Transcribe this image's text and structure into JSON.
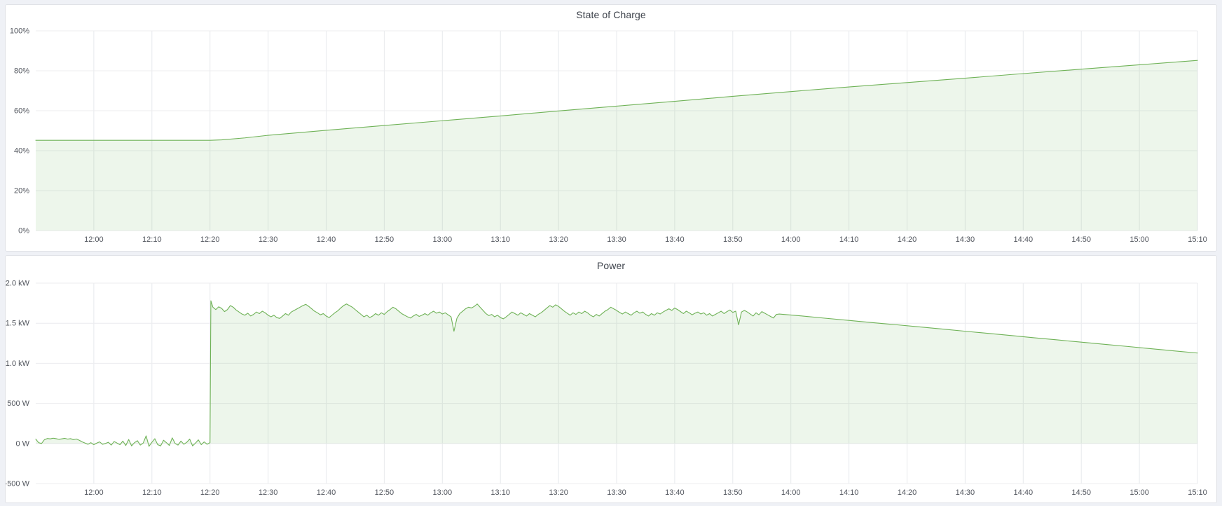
{
  "page": {
    "background_color": "#eff1f6",
    "panel_background": "#ffffff",
    "accent_green": "#6fb257"
  },
  "chart_data": [
    {
      "type": "area",
      "title": "State of Charge",
      "unit": "percent",
      "grid": true,
      "legend": false,
      "x_domain_minutes": [
        710,
        910
      ],
      "x_domain_labels": [
        "11:50",
        "15:10"
      ],
      "y_domain": [
        0,
        100
      ],
      "fill_baseline": 0,
      "y_ticks": [
        {
          "v": 0,
          "label": "0%"
        },
        {
          "v": 20,
          "label": "20%"
        },
        {
          "v": 40,
          "label": "40%"
        },
        {
          "v": 60,
          "label": "60%"
        },
        {
          "v": 80,
          "label": "80%"
        },
        {
          "v": 100,
          "label": "100%"
        }
      ],
      "x_ticks": [
        {
          "t": 720,
          "label": "12:00"
        },
        {
          "t": 730,
          "label": "12:10"
        },
        {
          "t": 740,
          "label": "12:20"
        },
        {
          "t": 750,
          "label": "12:30"
        },
        {
          "t": 760,
          "label": "12:40"
        },
        {
          "t": 770,
          "label": "12:50"
        },
        {
          "t": 780,
          "label": "13:00"
        },
        {
          "t": 790,
          "label": "13:10"
        },
        {
          "t": 800,
          "label": "13:20"
        },
        {
          "t": 810,
          "label": "13:30"
        },
        {
          "t": 820,
          "label": "13:40"
        },
        {
          "t": 830,
          "label": "13:50"
        },
        {
          "t": 840,
          "label": "14:00"
        },
        {
          "t": 850,
          "label": "14:10"
        },
        {
          "t": 860,
          "label": "14:20"
        },
        {
          "t": 870,
          "label": "14:30"
        },
        {
          "t": 880,
          "label": "14:40"
        },
        {
          "t": 890,
          "label": "14:50"
        },
        {
          "t": 900,
          "label": "15:00"
        },
        {
          "t": 910,
          "label": "15:10"
        }
      ],
      "series": [
        {
          "name": "State of Charge",
          "color": "#6fb257",
          "fill_opacity": 0.12,
          "segments": [
            {
              "pts": [
                [
                  710,
                  45.2
                ],
                [
                  740,
                  45.2
                ],
                [
                  742,
                  45.4
                ],
                [
                  746,
                  46.4
                ],
                [
                  750,
                  47.7
                ],
                [
                  760,
                  50.2
                ],
                [
                  770,
                  52.6
                ],
                [
                  780,
                  55.0
                ],
                [
                  790,
                  57.4
                ],
                [
                  800,
                  59.9
                ],
                [
                  810,
                  62.3
                ],
                [
                  820,
                  64.7
                ],
                [
                  830,
                  67.2
                ],
                [
                  840,
                  69.6
                ],
                [
                  850,
                  71.9
                ],
                [
                  860,
                  74.1
                ],
                [
                  870,
                  76.3
                ],
                [
                  880,
                  78.6
                ],
                [
                  890,
                  80.8
                ],
                [
                  900,
                  83.0
                ],
                [
                  910,
                  85.2
                ]
              ]
            }
          ]
        }
      ]
    },
    {
      "type": "area",
      "title": "Power",
      "unit": "watt",
      "grid": true,
      "legend": false,
      "x_domain_minutes": [
        710,
        910
      ],
      "x_domain_labels": [
        "11:50",
        "15:10"
      ],
      "y_domain": [
        -500,
        2000
      ],
      "fill_baseline": 0,
      "y_ticks": [
        {
          "v": -500,
          "label": "-500 W"
        },
        {
          "v": 0,
          "label": "0 W"
        },
        {
          "v": 500,
          "label": "500 W"
        },
        {
          "v": 1000,
          "label": "1.0 kW"
        },
        {
          "v": 1500,
          "label": "1.5 kW"
        },
        {
          "v": 2000,
          "label": "2.0 kW"
        }
      ],
      "x_ticks": [
        {
          "t": 720,
          "label": "12:00"
        },
        {
          "t": 730,
          "label": "12:10"
        },
        {
          "t": 740,
          "label": "12:20"
        },
        {
          "t": 750,
          "label": "12:30"
        },
        {
          "t": 760,
          "label": "12:40"
        },
        {
          "t": 770,
          "label": "12:50"
        },
        {
          "t": 780,
          "label": "13:00"
        },
        {
          "t": 790,
          "label": "13:10"
        },
        {
          "t": 800,
          "label": "13:20"
        },
        {
          "t": 810,
          "label": "13:30"
        },
        {
          "t": 820,
          "label": "13:40"
        },
        {
          "t": 830,
          "label": "13:50"
        },
        {
          "t": 840,
          "label": "14:00"
        },
        {
          "t": 850,
          "label": "14:10"
        },
        {
          "t": 860,
          "label": "14:20"
        },
        {
          "t": 870,
          "label": "14:30"
        },
        {
          "t": 880,
          "label": "14:40"
        },
        {
          "t": 890,
          "label": "14:50"
        },
        {
          "t": 900,
          "label": "15:00"
        },
        {
          "t": 910,
          "label": "15:10"
        }
      ],
      "series": [
        {
          "name": "Power",
          "color": "#6fb257",
          "fill_opacity": 0.12,
          "segments": [
            {
              "t0": 710,
              "dt": 0.5,
              "v": [
                55,
                10,
                0,
                48,
                62,
                58,
                66,
                60,
                52,
                58,
                64,
                55,
                60,
                48,
                56,
                40,
                20,
                5,
                -10,
                10,
                -15,
                5,
                20,
                -10,
                0,
                15,
                -20,
                25,
                5,
                -15,
                30,
                -25,
                50,
                -30,
                10,
                35,
                -20,
                5,
                95,
                -35,
                15,
                60,
                -15,
                -30,
                40,
                10,
                -25,
                70,
                0,
                -20,
                30,
                -10,
                15,
                55,
                -30,
                5,
                45,
                -15,
                20,
                -10,
                10
              ]
            },
            {
              "pts": [
                [
                  740.15,
                  1780
                ]
              ]
            },
            {
              "t0": 740.5,
              "dt": 0.5,
              "v": [
                1700,
                1670,
                1705,
                1685,
                1645,
                1670,
                1720,
                1700,
                1665,
                1640,
                1615,
                1600,
                1625,
                1590,
                1610,
                1640,
                1620,
                1650,
                1630,
                1600,
                1580,
                1600,
                1570,
                1560,
                1590,
                1620,
                1600,
                1640,
                1660,
                1680,
                1700,
                1720,
                1735,
                1710,
                1680,
                1650,
                1630,
                1605,
                1620,
                1590,
                1570,
                1600,
                1630,
                1655,
                1690,
                1720,
                1740,
                1720,
                1700,
                1670,
                1640,
                1610,
                1580,
                1600,
                1570,
                1590,
                1620,
                1600,
                1630,
                1610,
                1645,
                1670,
                1700,
                1680,
                1650,
                1620,
                1600,
                1580,
                1565,
                1590,
                1610,
                1585,
                1600,
                1620,
                1600,
                1630,
                1650,
                1625,
                1640,
                1615,
                1630,
                1605,
                1580,
                1400,
                1560,
                1620,
                1650,
                1680,
                1700,
                1690,
                1710,
                1740,
                1700,
                1660,
                1620,
                1595,
                1610,
                1580,
                1600,
                1570,
                1555,
                1580,
                1610,
                1640,
                1620,
                1600,
                1630,
                1610,
                1590,
                1620,
                1600,
                1580,
                1610,
                1630,
                1660,
                1690,
                1720,
                1700,
                1730,
                1710,
                1680,
                1650,
                1625,
                1600,
                1630,
                1610,
                1640,
                1620,
                1650,
                1630,
                1600,
                1580,
                1610,
                1590,
                1620,
                1650,
                1670,
                1700,
                1680,
                1660,
                1635,
                1615,
                1640,
                1620,
                1600,
                1630,
                1650,
                1625,
                1640,
                1610,
                1590,
                1620,
                1600,
                1630,
                1615,
                1640,
                1660,
                1680,
                1660,
                1690,
                1670,
                1645,
                1620,
                1650,
                1630,
                1605,
                1625,
                1640,
                1615,
                1630,
                1600,
                1620,
                1590,
                1610,
                1630,
                1650,
                1620,
                1645,
                1665,
                1635,
                1650,
                1480,
                1640,
                1660,
                1640,
                1615,
                1590,
                1630,
                1605,
                1645,
                1625,
                1605,
                1585,
                1565,
                1610
              ]
            },
            {
              "pts": [
                [
                  838,
                  1615
                ],
                [
                  842,
                  1590
                ],
                [
                  846,
                  1562
                ],
                [
                  850,
                  1535
                ],
                [
                  854,
                  1508
                ],
                [
                  858,
                  1482
                ],
                [
                  862,
                  1455
                ],
                [
                  866,
                  1428
                ],
                [
                  870,
                  1400
                ],
                [
                  874,
                  1373
                ],
                [
                  878,
                  1346
                ],
                [
                  882,
                  1318
                ],
                [
                  886,
                  1291
                ],
                [
                  890,
                  1264
                ],
                [
                  894,
                  1237
                ],
                [
                  898,
                  1210
                ],
                [
                  902,
                  1182
                ],
                [
                  906,
                  1155
                ],
                [
                  910,
                  1128
                ]
              ]
            }
          ]
        }
      ]
    }
  ]
}
